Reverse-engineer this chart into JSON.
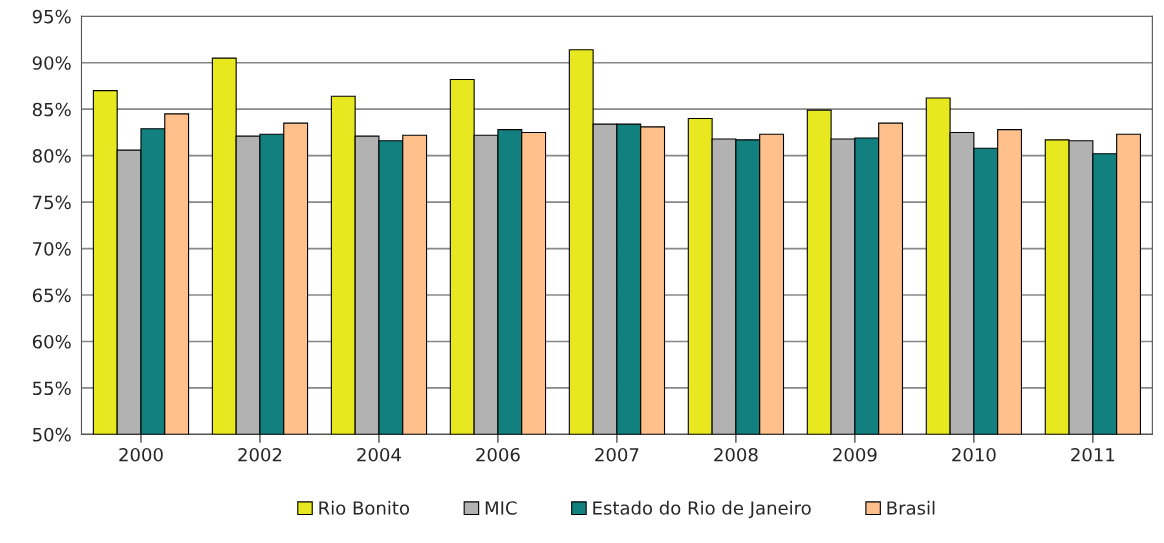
{
  "chart_data": {
    "type": "bar",
    "categories": [
      "2000",
      "2002",
      "2004",
      "2006",
      "2007",
      "2008",
      "2009",
      "2010",
      "2011"
    ],
    "series": [
      {
        "name": "Rio Bonito",
        "color": "#e8e820",
        "values": [
          87.0,
          90.5,
          86.4,
          88.2,
          91.4,
          84.0,
          84.9,
          86.2,
          81.7
        ]
      },
      {
        "name": "MIC",
        "color": "#b2b2b2",
        "values": [
          80.6,
          82.1,
          82.1,
          82.2,
          83.4,
          81.8,
          81.8,
          82.5,
          81.6
        ]
      },
      {
        "name": "Estado do Rio de Janeiro",
        "color": "#138080",
        "values": [
          82.9,
          82.3,
          81.6,
          82.8,
          83.4,
          81.7,
          81.9,
          80.8,
          80.2
        ]
      },
      {
        "name": "Brasil",
        "color": "#ffc08c",
        "values": [
          84.5,
          83.5,
          82.2,
          82.5,
          83.1,
          82.3,
          83.5,
          82.8,
          82.3
        ]
      }
    ],
    "ylim": [
      50,
      95
    ],
    "yticks": [
      {
        "value": 50,
        "label": "50%"
      },
      {
        "value": 55,
        "label": "55%"
      },
      {
        "value": 60,
        "label": "60%"
      },
      {
        "value": 65,
        "label": "65%"
      },
      {
        "value": 70,
        "label": "70%"
      },
      {
        "value": 75,
        "label": "75%"
      },
      {
        "value": 80,
        "label": "80%"
      },
      {
        "value": 85,
        "label": "85%"
      },
      {
        "value": 90,
        "label": "90%"
      },
      {
        "value": 95,
        "label": "95%"
      }
    ],
    "grid": "y",
    "legend": "bottom"
  }
}
